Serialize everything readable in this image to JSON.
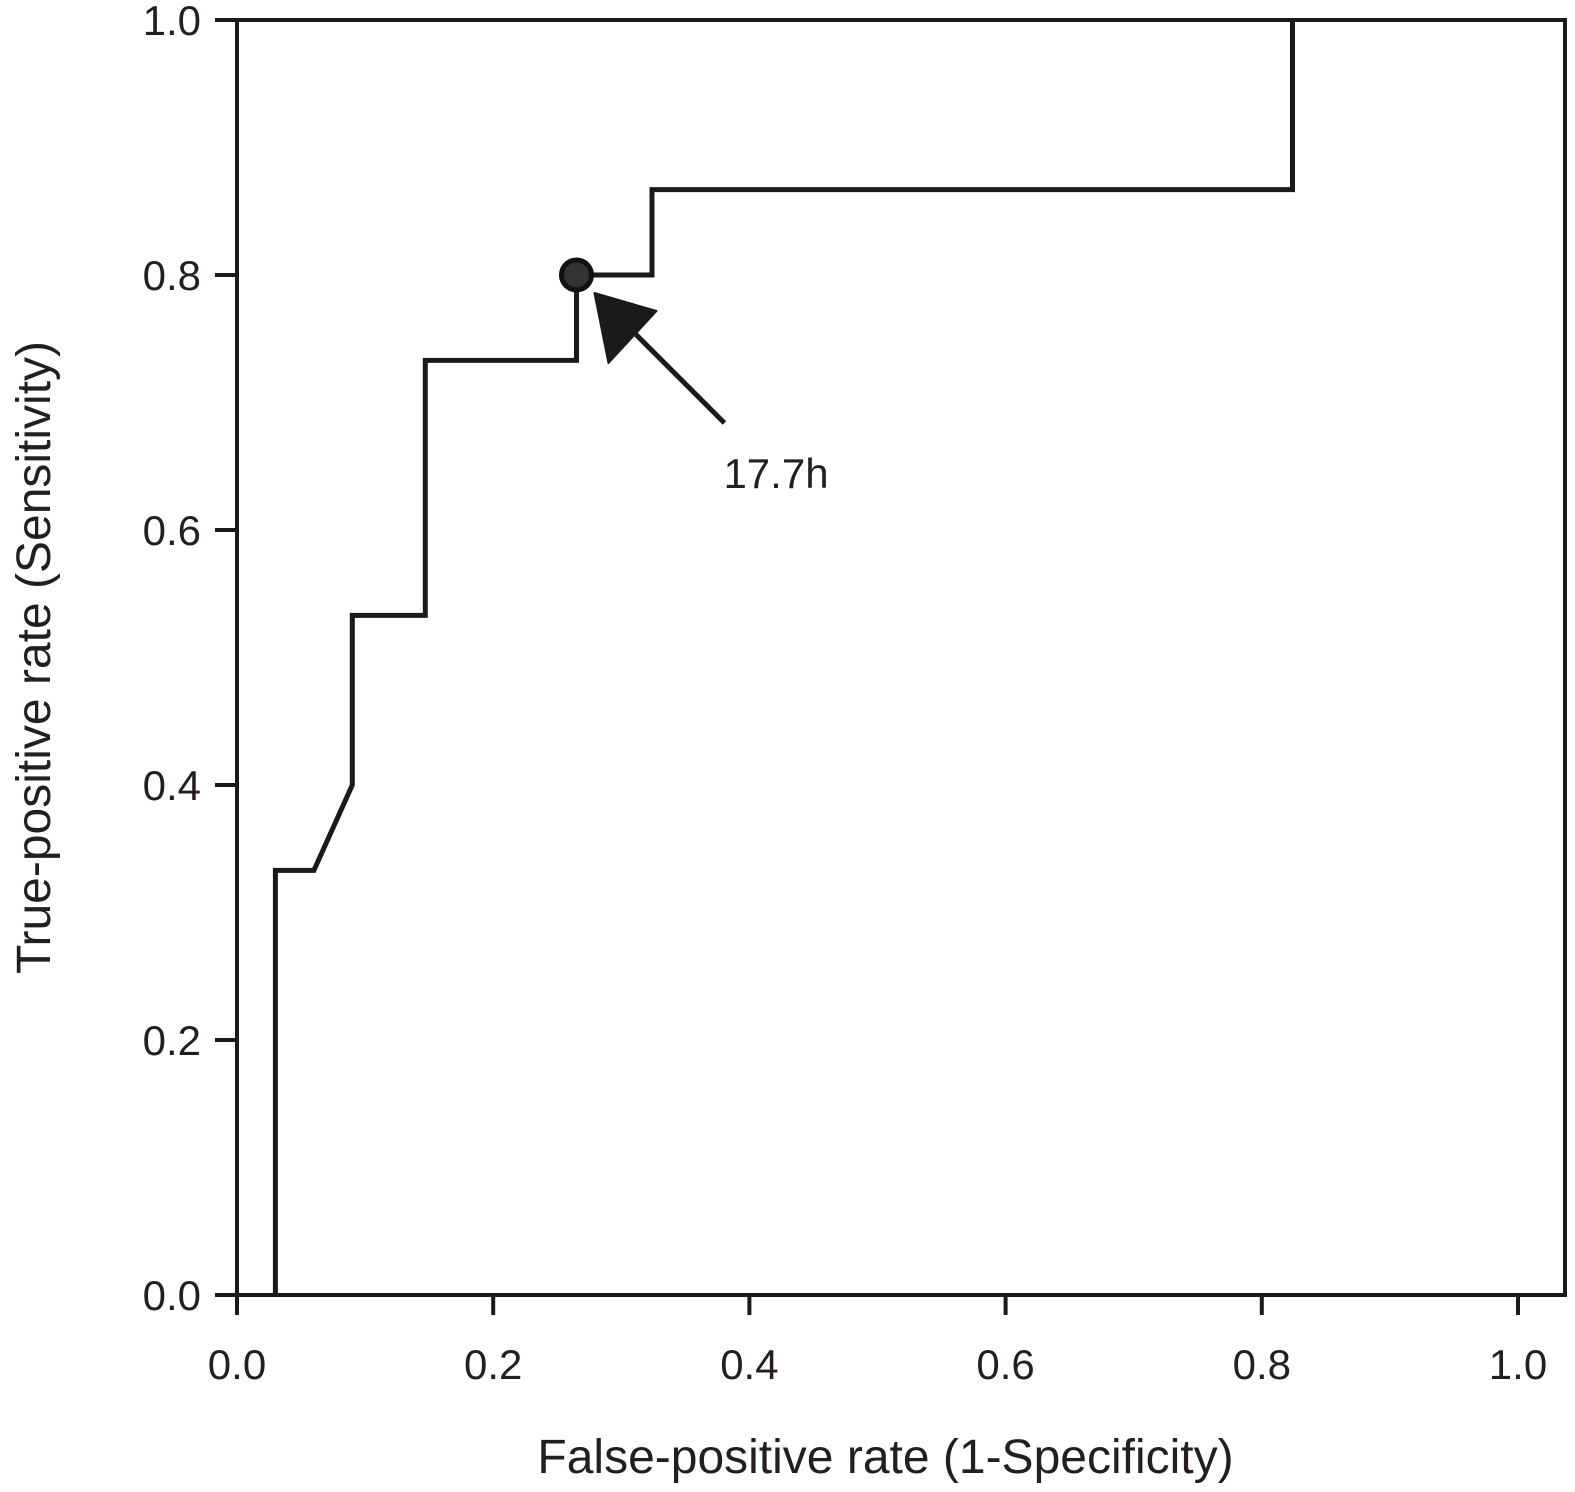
{
  "chart_data": {
    "type": "line",
    "title": "",
    "xlabel": "False-positive rate (1-Specificity)",
    "ylabel": "True-positive rate (Sensitivity)",
    "xlim": [
      0,
      1
    ],
    "ylim": [
      0,
      1
    ],
    "x_ticks": [
      "0.0",
      "0.2",
      "0.4",
      "0.6",
      "0.8",
      "1.0"
    ],
    "y_ticks": [
      "0.0",
      "0.2",
      "0.4",
      "0.6",
      "0.8",
      "1.0"
    ],
    "grid": false,
    "series": [
      {
        "x": [
          0.03,
          0.03,
          0.06,
          0.09,
          0.09,
          0.147,
          0.147,
          0.265,
          0.265,
          0.324,
          0.324,
          0.824,
          0.824
        ],
        "y": [
          0.0,
          0.333,
          0.333,
          0.4,
          0.533,
          0.533,
          0.733,
          0.733,
          0.8,
          0.8,
          0.867,
          0.867,
          1.0
        ]
      }
    ],
    "highlight_point": {
      "x": 0.265,
      "y": 0.8
    },
    "annotation": {
      "text": "17.7h",
      "x": 0.265,
      "y": 0.8
    },
    "colors": {
      "line": "#1a1a1a",
      "text": "#231f20",
      "marker_fill": "#333333"
    }
  }
}
